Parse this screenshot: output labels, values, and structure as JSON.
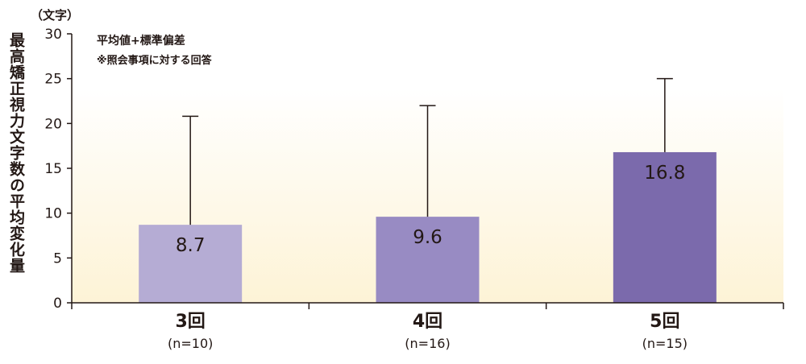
{
  "chart_data": {
    "type": "bar",
    "ylabel": "最高矯正視力文字数の平均変化量",
    "unit_label": "（文字）",
    "legend_lines": [
      "平均値+標準偏差",
      "※照会事項に対する回答"
    ],
    "ylim": [
      0,
      30
    ],
    "yticks": [
      "0",
      "5",
      "10",
      "15",
      "20",
      "25",
      "30"
    ],
    "categories": [
      {
        "label": "3回",
        "n": "(n=10)"
      },
      {
        "label": "4回",
        "n": "(n=16)"
      },
      {
        "label": "5回",
        "n": "(n=15)"
      }
    ],
    "values": [
      8.7,
      9.6,
      16.8
    ],
    "value_labels": [
      "8.7",
      "9.6",
      "16.8"
    ],
    "error_upper": [
      20.8,
      22.0,
      25.0
    ],
    "colors": [
      "#b5acd4",
      "#988bc3",
      "#7b6aac"
    ],
    "background_gradient": [
      "#ffffff",
      "#fdf3d6"
    ]
  }
}
